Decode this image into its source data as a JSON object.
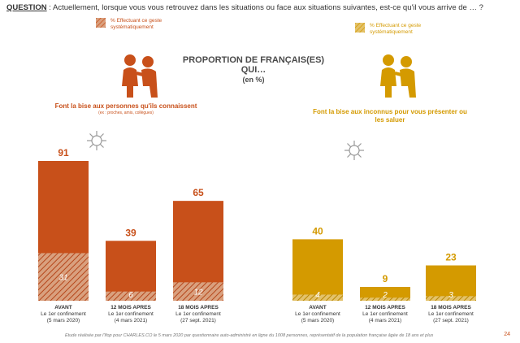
{
  "question": {
    "prefix": "QUESTION",
    "text": " :  Actuellement, lorsque vous vous retrouvez dans les situations ou face aux situations suivantes, est-ce qu'il vous arrive de … ?"
  },
  "legends": {
    "left": "% Effectuant ce geste systématiquement",
    "right": "% Effectuant ce geste systématiquement"
  },
  "center_title": {
    "line1": "PROPORTION DE FRANÇAIS(ES)",
    "line2": "QUI…",
    "line3": "(en %)"
  },
  "subtitles": {
    "left": "Font la bise aux personnes qu'ils connaissent",
    "left_small": "(ex : proches, amis, collègues)",
    "right": "Font la bise aux inconnus pour vous présenter ou les saluer"
  },
  "footer": "Etude réalisée par l'Ifop pour CHARLES.CO le 5 mars 2020 par questionnaire auto-administré en ligne du 1008 personnes, représentatif de la population française âgée de 18 ans et plus",
  "page_number": "24",
  "colors": {
    "left": "#C8501A",
    "left_hatch": "#D9A07E",
    "right": "#D49A00",
    "right_hatch": "#E3C26B"
  },
  "icons": [
    "virus-icon",
    "kissing-people-icon"
  ],
  "chart_data": [
    {
      "type": "bar",
      "categories": [
        [
          "AVANT",
          "Le 1er confinement",
          "(5 mars 2020)"
        ],
        [
          "12 MOIS APRES",
          "Le 1er confinement",
          "(4 mars 2021)"
        ],
        [
          "18 MOIS APRES",
          "Le 1er confinement",
          "(27 sept. 2021)"
        ]
      ],
      "values": [
        91,
        39,
        65
      ],
      "systematic_values": [
        31,
        6,
        12
      ],
      "title": "Font la bise aux personnes qu'ils connaissent",
      "ylim": [
        0,
        100
      ]
    },
    {
      "type": "bar",
      "categories": [
        [
          "AVANT",
          "Le 1er confinement",
          "(5 mars 2020)"
        ],
        [
          "12 MOIS APRES",
          "Le 1er confinement",
          "(4 mars 2021)"
        ],
        [
          "18 MOIS APRES",
          "Le 1er confinement",
          "(27 sept. 2021)"
        ]
      ],
      "values": [
        40,
        9,
        23
      ],
      "systematic_values": [
        4,
        2,
        3
      ],
      "title": "Font la bise aux inconnus pour vous présenter ou les saluer",
      "ylim": [
        0,
        100
      ]
    }
  ]
}
